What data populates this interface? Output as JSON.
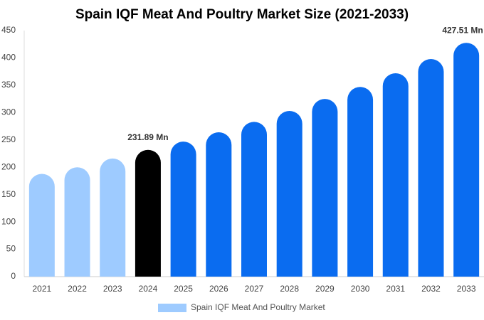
{
  "chart_data": {
    "type": "bar",
    "title": "Spain IQF Meat And Poultry Market Size (2021-2033)",
    "categories": [
      "2021",
      "2022",
      "2023",
      "2024",
      "2025",
      "2026",
      "2027",
      "2028",
      "2029",
      "2030",
      "2031",
      "2032",
      "2033"
    ],
    "series": [
      {
        "name": "Spain IQF Meat And Poultry Market",
        "color": "#9ecbff",
        "colors": [
          "#9ecbff",
          "#9ecbff",
          "#9ecbff",
          "#000000",
          "#0a6cf0",
          "#0a6cf0",
          "#0a6cf0",
          "#0a6cf0",
          "#0a6cf0",
          "#0a6cf0",
          "#0a6cf0",
          "#0a6cf0",
          "#0a6cf0"
        ],
        "values": [
          188,
          200,
          216,
          231.89,
          247,
          264,
          283,
          303,
          325,
          347,
          372,
          398,
          427.51
        ],
        "value_labels": [
          null,
          null,
          null,
          "231.89 Mn",
          null,
          null,
          null,
          null,
          null,
          null,
          null,
          null,
          "427.51 Mn"
        ]
      }
    ],
    "ylim": [
      0,
      450
    ],
    "yticks": [
      0,
      50,
      100,
      150,
      200,
      250,
      300,
      350,
      400,
      450
    ],
    "grid": false
  }
}
